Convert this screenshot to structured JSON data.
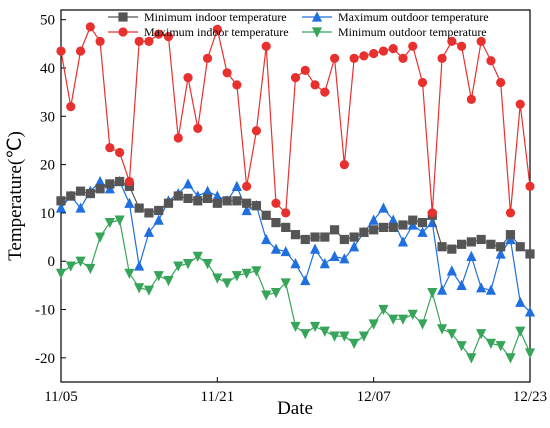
{
  "chart_data": {
    "type": "line",
    "title": "",
    "xlabel": "Date",
    "ylabel": "Temperature(℃)",
    "x_ticks": [
      "11/05",
      "11/21",
      "12/07",
      "12/23"
    ],
    "y_ticks": [
      -20,
      -10,
      0,
      10,
      20,
      30,
      40,
      50
    ],
    "x": [
      "11/05",
      "11/06",
      "11/07",
      "11/08",
      "11/09",
      "11/10",
      "11/11",
      "11/12",
      "11/13",
      "11/14",
      "11/15",
      "11/16",
      "11/17",
      "11/18",
      "11/19",
      "11/20",
      "11/21",
      "11/22",
      "11/23",
      "11/24",
      "11/25",
      "11/26",
      "11/27",
      "11/28",
      "11/29",
      "11/30",
      "12/01",
      "12/02",
      "12/03",
      "12/04",
      "12/05",
      "12/06",
      "12/07",
      "12/08",
      "12/09",
      "12/10",
      "12/11",
      "12/12",
      "12/13",
      "12/14",
      "12/15",
      "12/16",
      "12/17",
      "12/18",
      "12/19",
      "12/20",
      "12/21",
      "12/22",
      "12/23"
    ],
    "ylim": [
      -25,
      52
    ],
    "grid": false,
    "legend_position": "top",
    "series": [
      {
        "name": "Minimum indoor temperature",
        "color": "#555555",
        "marker": "square",
        "values": [
          12.5,
          13.5,
          14.5,
          14.0,
          15.0,
          16.0,
          16.5,
          15.5,
          11.0,
          10.0,
          10.5,
          12.0,
          13.5,
          13.0,
          12.5,
          13.0,
          12.0,
          12.5,
          12.5,
          12.0,
          11.5,
          9.5,
          8.0,
          7.0,
          5.5,
          4.5,
          5.0,
          5.0,
          6.5,
          4.5,
          5.0,
          6.0,
          6.5,
          7.0,
          7.0,
          7.5,
          8.5,
          8.0,
          9.5,
          3.0,
          2.5,
          3.5,
          4.0,
          4.5,
          3.5,
          3.0,
          5.5,
          3.0,
          1.5
        ]
      },
      {
        "name": "Maximum outdoor temperature",
        "color": "#1f6fe0",
        "marker": "triangle-up",
        "values": [
          11.0,
          13.5,
          11.0,
          14.5,
          16.5,
          15.0,
          16.5,
          12.0,
          -1.0,
          6.0,
          8.5,
          12.5,
          14.0,
          16.0,
          13.5,
          14.5,
          13.5,
          12.5,
          15.5,
          10.5,
          11.5,
          4.5,
          2.5,
          2.0,
          -0.5,
          -4.0,
          2.5,
          -0.5,
          1.0,
          0.5,
          3.0,
          6.0,
          8.5,
          11.0,
          8.5,
          4.0,
          7.5,
          6.0,
          8.0,
          -6.0,
          -2.0,
          -5.0,
          1.0,
          -5.5,
          -6.0,
          1.5,
          4.5,
          -8.5,
          -10.5
        ]
      },
      {
        "name": "Maximum indoor temperature",
        "color": "#e8302e",
        "marker": "circle",
        "values": [
          43.5,
          32.0,
          43.5,
          48.5,
          45.5,
          23.5,
          22.5,
          16.5,
          45.5,
          45.5,
          47.0,
          46.5,
          25.5,
          38.0,
          27.5,
          42.0,
          48.0,
          39.0,
          36.5,
          15.5,
          27.0,
          44.5,
          12.0,
          10.0,
          38.0,
          39.5,
          36.5,
          35.0,
          42.0,
          20.0,
          42.0,
          42.5,
          43.0,
          43.5,
          44.0,
          42.0,
          44.5,
          37.0,
          10.0,
          42.0,
          45.5,
          44.5,
          33.5,
          45.5,
          41.5,
          37.0,
          10.0,
          32.5,
          15.5
        ]
      },
      {
        "name": "Minimum outdoor temperature",
        "color": "#36a55a",
        "marker": "triangle-down",
        "values": [
          -2.5,
          -1.0,
          0.0,
          -1.5,
          5.0,
          8.0,
          8.5,
          -2.5,
          -5.5,
          -6.0,
          -3.0,
          -4.0,
          -1.0,
          -0.5,
          1.0,
          -0.5,
          -3.5,
          -4.5,
          -3.0,
          -2.5,
          -2.0,
          -7.0,
          -6.5,
          -4.5,
          -13.5,
          -15.0,
          -13.5,
          -14.5,
          -15.5,
          -15.5,
          -17.0,
          -15.5,
          -13.0,
          -10.0,
          -12.0,
          -12.0,
          -11.0,
          -13.0,
          -6.5,
          -14.0,
          -15.0,
          -17.5,
          -20.0,
          -15.0,
          -17.0,
          -17.5,
          -20.0,
          -14.5,
          -19.0
        ]
      }
    ]
  }
}
